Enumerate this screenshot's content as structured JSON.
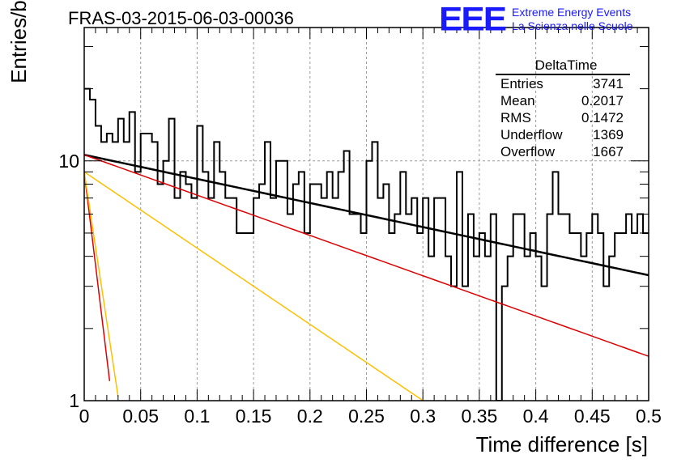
{
  "header": {
    "run_title": "FRAS-03-2015-06-03-00036",
    "logo_mark": "EEE",
    "logo_line1": "Extreme Energy Events",
    "logo_line2": "La Scienza nelle Scuole"
  },
  "stats": {
    "title": "DeltaTime",
    "rows": [
      {
        "label": "Entries",
        "value": "3741"
      },
      {
        "label": "Mean",
        "value": "0.2017"
      },
      {
        "label": "RMS",
        "value": "0.1472"
      },
      {
        "label": "Underflow",
        "value": "1369"
      },
      {
        "label": "Overflow",
        "value": "1667"
      }
    ]
  },
  "chart_data": {
    "type": "line",
    "title": "FRAS-03-2015-06-03-00036",
    "xlabel": "Time difference [s]",
    "ylabel": "Entries/bin",
    "xlim": [
      0,
      0.5
    ],
    "ylim": [
      1,
      36
    ],
    "yscale": "log",
    "grid": true,
    "x_ticks": [
      "0",
      "0.05",
      "0.1",
      "0.15",
      "0.2",
      "0.25",
      "0.3",
      "0.35",
      "0.4",
      "0.45",
      "0.5"
    ],
    "y_ticks": [
      "1",
      "10"
    ],
    "histogram": {
      "name": "DeltaTime",
      "color": "#000000",
      "bin_width": 0.005,
      "x_start": 0,
      "values": [
        20,
        18,
        14,
        12,
        13,
        12,
        15,
        12,
        16,
        9,
        13,
        13,
        12,
        8,
        10,
        15,
        7,
        9,
        8,
        7,
        14,
        9,
        7,
        12,
        9,
        7,
        7,
        5,
        5,
        5,
        7,
        8,
        12,
        7,
        10,
        10,
        6,
        8,
        9,
        5,
        8,
        8,
        7,
        9,
        7,
        9,
        11,
        6,
        6,
        5,
        10,
        12,
        7,
        8,
        5,
        6,
        9,
        6,
        7,
        5,
        7,
        4,
        7,
        7,
        4,
        3,
        9,
        3,
        6,
        4,
        5,
        4,
        6,
        1,
        3,
        4,
        6,
        6,
        4,
        5,
        4,
        3,
        6,
        9,
        6,
        6,
        5,
        5,
        4,
        5,
        6,
        5,
        3,
        4,
        5,
        5,
        6,
        5,
        6,
        5,
        5,
        4,
        4,
        3,
        5,
        3,
        4,
        5,
        3,
        5,
        5,
        4,
        3,
        3,
        4,
        6,
        3,
        4,
        6,
        4,
        4,
        7,
        5,
        5,
        4,
        5,
        4,
        9,
        5,
        7,
        5,
        6,
        4,
        3,
        4,
        4,
        5,
        3,
        3,
        3,
        4,
        3,
        2,
        4,
        3,
        4,
        3,
        4,
        4,
        3
      ]
    },
    "fits": [
      {
        "name": "total-fit",
        "color": "#000000",
        "width": 2.5,
        "A": 10.6,
        "tau": 0.4325
      },
      {
        "name": "slow-component",
        "color": "#dd0000",
        "width": 1.5,
        "A": 10.6,
        "tau": 0.2584
      },
      {
        "name": "medium-component",
        "color": "#ffbf00",
        "width": 1.5,
        "A": 9.0,
        "tau": 0.1366
      },
      {
        "name": "fast-component-a",
        "color": "#dd0000",
        "width": 1.5,
        "A": 9.0,
        "tau": 0.0112
      },
      {
        "name": "fast-component-b",
        "color": "#ffbf00",
        "width": 1.5,
        "A": 9.0,
        "tau": 0.0139
      }
    ]
  }
}
